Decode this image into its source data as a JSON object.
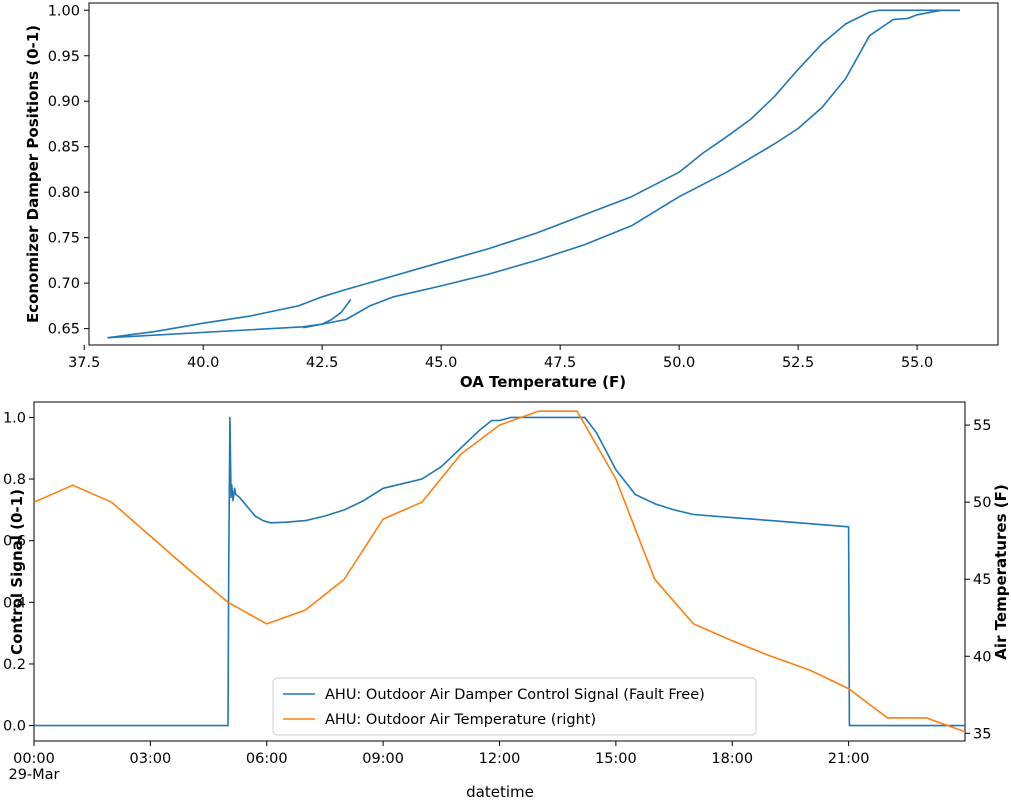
{
  "colors": {
    "blue": "#1f77b4",
    "orange": "#ff7f0e"
  },
  "chart_data": [
    {
      "type": "line",
      "xlabel": "OA Temperature (F)",
      "ylabel": "Economizer Damper Positions (0-1)",
      "xlim": [
        37.6,
        56.7
      ],
      "ylim": [
        0.632,
        1.008
      ],
      "xticks": [
        "37.5",
        "40.0",
        "42.5",
        "45.0",
        "47.5",
        "50.0",
        "52.5",
        "55.0"
      ],
      "yticks": [
        "0.65",
        "0.70",
        "0.75",
        "0.80",
        "0.85",
        "0.90",
        "0.95",
        "1.00"
      ],
      "grid": false,
      "series": [
        {
          "x": [
            43.1,
            42.9,
            42.7,
            42.5,
            42.1,
            38.0,
            39.0,
            40.0,
            41.0,
            42.0,
            42.5,
            43.0,
            44.0,
            45.0,
            46.0,
            47.0,
            48.0,
            49.0,
            50.0,
            50.5,
            51.0,
            51.5,
            52.0,
            52.5,
            53.0,
            53.5,
            54.0,
            54.2,
            54.5,
            55.0,
            55.5,
            55.9
          ],
          "y": [
            0.682,
            0.668,
            0.66,
            0.655,
            0.652,
            0.64,
            0.647,
            0.656,
            0.664,
            0.675,
            0.685,
            0.693,
            0.708,
            0.723,
            0.738,
            0.755,
            0.775,
            0.795,
            0.822,
            0.843,
            0.861,
            0.88,
            0.905,
            0.935,
            0.963,
            0.985,
            0.998,
            1.0,
            1.0,
            1.0,
            1.0,
            1.0
          ]
        },
        {
          "x": [
            42.1,
            42.5,
            43.0,
            43.5,
            44.0,
            45.0,
            46.0,
            47.0,
            48.0,
            49.0,
            50.0,
            51.0,
            52.0,
            52.5,
            53.0,
            53.5,
            54.0,
            54.5,
            54.8,
            55.0,
            55.5,
            55.9
          ],
          "y": [
            0.651,
            0.655,
            0.66,
            0.675,
            0.685,
            0.697,
            0.71,
            0.725,
            0.742,
            0.763,
            0.795,
            0.822,
            0.853,
            0.87,
            0.893,
            0.925,
            0.972,
            0.99,
            0.991,
            0.995,
            1.0,
            1.0
          ]
        }
      ]
    },
    {
      "type": "line",
      "xlabel": "datetime",
      "ylabel": "Control Signal (0-1)",
      "ylabel_right": "Air Temperatures (F)",
      "xlim": [
        0,
        24
      ],
      "ylim": [
        -0.05,
        1.05
      ],
      "ylim_right": [
        34.5,
        56.5
      ],
      "xticks": [
        {
          "at": 0,
          "label": "00:00",
          "sub": "29-Mar"
        },
        {
          "at": 3,
          "label": "03:00"
        },
        {
          "at": 6,
          "label": "06:00"
        },
        {
          "at": 9,
          "label": "09:00"
        },
        {
          "at": 12,
          "label": "12:00"
        },
        {
          "at": 15,
          "label": "15:00"
        },
        {
          "at": 18,
          "label": "18:00"
        },
        {
          "at": 21,
          "label": "21:00"
        }
      ],
      "yticks": [
        "0.0",
        "0.2",
        "0.4",
        "0.6",
        "0.8",
        "1.0"
      ],
      "yticks_right": [
        "35",
        "40",
        "45",
        "50",
        "55"
      ],
      "legend_position": "lower center",
      "series": [
        {
          "name": "AHU: Outdoor Air Damper Control Signal (Fault Free)",
          "axis": "left",
          "x": [
            0,
            5.0,
            5.02,
            5.05,
            5.08,
            5.1,
            5.13,
            5.17,
            5.2,
            5.3,
            5.5,
            5.7,
            5.9,
            6.1,
            6.5,
            7.0,
            7.5,
            8.0,
            8.5,
            9.0,
            9.5,
            10.0,
            10.5,
            11.0,
            11.5,
            11.8,
            12.0,
            12.3,
            12.5,
            13.0,
            13.5,
            14.0,
            14.2,
            14.5,
            15.0,
            15.5,
            16.0,
            16.5,
            17.0,
            18.0,
            19.0,
            20.0,
            21.0,
            21.02,
            24.0
          ],
          "y": [
            0,
            0,
            0.5,
            1.0,
            0.74,
            0.78,
            0.73,
            0.77,
            0.75,
            0.74,
            0.71,
            0.68,
            0.665,
            0.658,
            0.66,
            0.665,
            0.68,
            0.7,
            0.73,
            0.77,
            0.785,
            0.8,
            0.84,
            0.9,
            0.96,
            0.99,
            0.99,
            1.0,
            1.0,
            1.0,
            1.0,
            1.0,
            1.0,
            0.95,
            0.83,
            0.75,
            0.72,
            0.7,
            0.685,
            0.675,
            0.665,
            0.655,
            0.645,
            0,
            0
          ]
        },
        {
          "name": "AHU: Outdoor Air Temperature (right)",
          "axis": "right",
          "x": [
            0,
            1,
            2,
            3,
            4,
            5,
            6,
            7,
            8,
            9,
            10,
            11,
            12,
            13,
            14,
            15,
            16,
            17,
            18,
            19,
            20,
            21,
            22,
            23,
            24
          ],
          "y": [
            50.0,
            51.1,
            50.0,
            47.8,
            45.6,
            43.5,
            42.1,
            43.0,
            45.0,
            48.9,
            50.0,
            53.1,
            55.0,
            55.9,
            55.9,
            51.5,
            45.0,
            42.1,
            41.0,
            40.0,
            39.1,
            37.9,
            36.0,
            36.0,
            35.1
          ]
        }
      ]
    }
  ]
}
